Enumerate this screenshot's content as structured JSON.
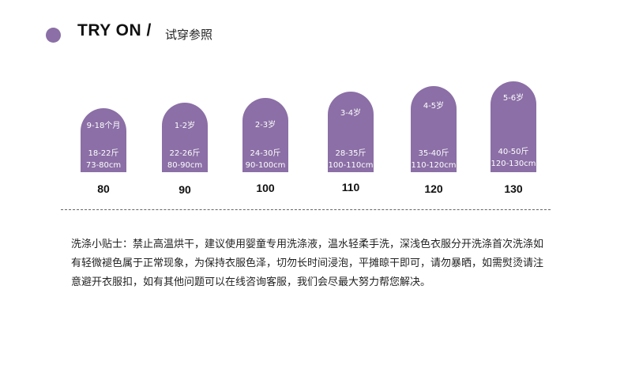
{
  "header": {
    "title": "TRY ON /",
    "subtitle": "试穿参照"
  },
  "sizes": [
    {
      "age": "9-18个月",
      "weight": "18-22斤",
      "height": "73-80cm",
      "label": "80"
    },
    {
      "age": "1-2岁",
      "weight": "22-26斤",
      "height": "80-90cm",
      "label": "90"
    },
    {
      "age": "2-3岁",
      "weight": "24-30斤",
      "height": "90-100cm",
      "label": "100"
    },
    {
      "age": "3-4岁",
      "weight": "28-35斤",
      "height": "100-110cm",
      "label": "110"
    },
    {
      "age": "4-5岁",
      "weight": "35-40斤",
      "height": "110-120cm",
      "label": "120"
    },
    {
      "age": "5-6岁",
      "weight": "40-50斤",
      "height": "120-130cm",
      "label": "130"
    }
  ],
  "colors": {
    "accent": "#8b6fa6"
  },
  "note": "洗涤小贴士：禁止高温烘干，建议使用婴童专用洗涤液，温水轻柔手洗，深浅色衣服分开洗涤首次洗涤如有轻微褪色属于正常现象，为保持衣服色泽，切勿长时间浸泡，平摊晾干即可，请勿暴晒，如需熨烫请注意避开衣服扣，如有其他问题可以在线咨询客服，我们会尽最大努力帮您解决。"
}
